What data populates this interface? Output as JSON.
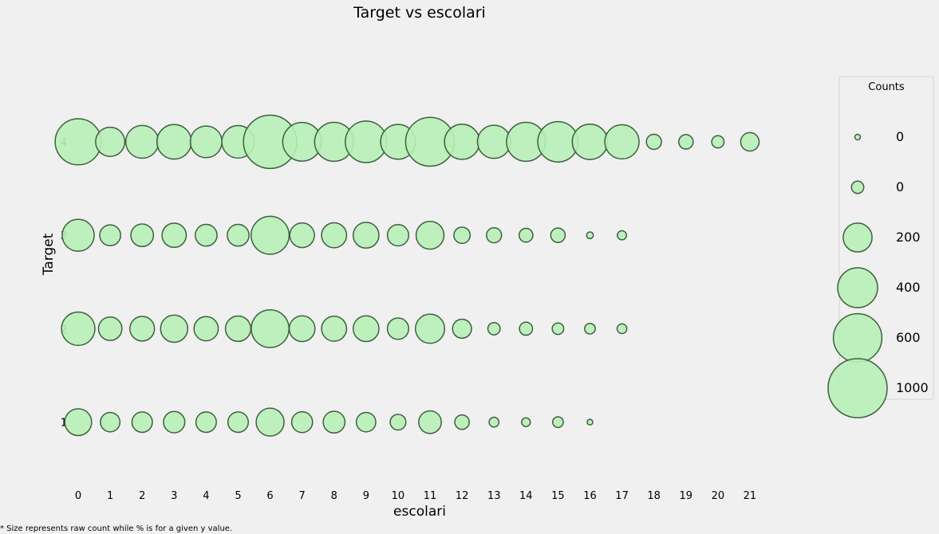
{
  "chart_data": {
    "type": "scatter",
    "title": "Target vs escolari",
    "xlabel": "escolari",
    "ylabel": "Target",
    "x_ticks": [
      0,
      1,
      2,
      3,
      4,
      5,
      6,
      7,
      8,
      9,
      10,
      11,
      12,
      13,
      14,
      15,
      16,
      17,
      18,
      19,
      20,
      21
    ],
    "y_ticks": [
      1,
      2,
      3,
      4
    ],
    "xlim": [
      -0.3,
      21.6
    ],
    "ylim": [
      0.4,
      4.75
    ],
    "grid": false,
    "legend": {
      "title": "Counts",
      "placement": "right",
      "labels": [
        "0",
        "0",
        "200",
        "400",
        "600",
        "1000"
      ],
      "size_values": [
        4,
        40,
        220,
        420,
        620,
        920
      ]
    },
    "marker_fill": "#b7efb7",
    "marker_edge": "#3f5f3f",
    "series": [
      {
        "y": 1,
        "x": [
          0,
          1,
          2,
          3,
          4,
          5,
          6,
          7,
          8,
          9,
          10,
          11,
          12,
          13,
          14,
          15,
          16
        ],
        "counts": [
          190,
          100,
          110,
          120,
          110,
          110,
          205,
          115,
          125,
          100,
          65,
          135,
          55,
          25,
          20,
          30,
          8
        ]
      },
      {
        "y": 2,
        "x": [
          0,
          1,
          2,
          3,
          4,
          5,
          6,
          7,
          8,
          9,
          10,
          11,
          12,
          13,
          14,
          15,
          16,
          17
        ],
        "counts": [
          295,
          145,
          160,
          195,
          155,
          170,
          375,
          175,
          165,
          175,
          120,
          225,
          95,
          40,
          45,
          35,
          30,
          25
        ]
      },
      {
        "y": 3,
        "x": [
          0,
          1,
          2,
          3,
          4,
          5,
          6,
          7,
          8,
          9,
          10,
          11,
          12,
          13,
          14,
          15,
          16,
          17
        ],
        "counts": [
          270,
          115,
          135,
          155,
          125,
          125,
          380,
          160,
          165,
          175,
          120,
          205,
          70,
          60,
          50,
          55,
          12,
          22
        ]
      },
      {
        "y": 4,
        "x": [
          0,
          1,
          2,
          3,
          4,
          5,
          6,
          7,
          8,
          9,
          10,
          11,
          12,
          13,
          14,
          15,
          16,
          17,
          18,
          19,
          20,
          21
        ],
        "counts": [
          560,
          225,
          285,
          315,
          265,
          280,
          750,
          395,
          400,
          455,
          320,
          630,
          325,
          290,
          400,
          430,
          330,
          310,
          60,
          55,
          40,
          90
        ]
      }
    ]
  },
  "footnote": "* Size represents raw count while % is for a given y value."
}
